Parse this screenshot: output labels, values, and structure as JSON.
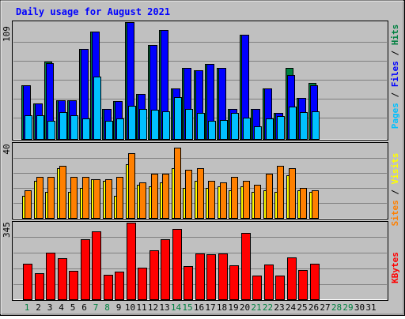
{
  "chart_data": {
    "type": "bar",
    "title": "Daily usage for August 2021",
    "days": [
      "1",
      "2",
      "3",
      "4",
      "5",
      "6",
      "7",
      "8",
      "9",
      "10",
      "11",
      "12",
      "13",
      "14",
      "15",
      "16",
      "17",
      "18",
      "19",
      "20",
      "21",
      "22",
      "23",
      "24",
      "25",
      "26",
      "27",
      "28",
      "29",
      "30",
      "31"
    ],
    "weekend_days": [
      "1",
      "7",
      "8",
      "14",
      "15",
      "21",
      "22",
      "28",
      "29"
    ],
    "panels": [
      {
        "max_label": "109",
        "ylim": [
          0,
          109
        ],
        "series": [
          {
            "name": "Hits",
            "color": "#008040",
            "values": [
              50,
              33,
              72,
              36,
              36,
              84,
              100,
              28,
              35,
              109,
              42,
              88,
              102,
              47,
              66,
              64,
              70,
              66,
              28,
              97,
              28,
              47,
              24,
              66,
              38,
              52,
              0,
              0,
              0,
              0,
              0
            ]
          },
          {
            "name": "Files",
            "color": "#0000ff",
            "values": [
              50,
              33,
              71,
              36,
              36,
              84,
              100,
              28,
              35,
              109,
              42,
              88,
              102,
              47,
              66,
              64,
              70,
              66,
              28,
              97,
              28,
              47,
              24,
              60,
              38,
              50,
              0,
              0,
              0,
              0,
              0
            ]
          },
          {
            "name": "Pages",
            "color": "#00c0ff",
            "values": [
              22,
              22,
              17,
              25,
              22,
              19,
              58,
              17,
              19,
              31,
              28,
              27,
              26,
              39,
              28,
              24,
              17,
              18,
              24,
              20,
              12,
              19,
              21,
              30,
              25,
              26,
              0,
              0,
              0,
              0,
              0
            ]
          }
        ]
      },
      {
        "max_label": "40",
        "ylim": [
          0,
          40
        ],
        "series": [
          {
            "name": "Visits",
            "color": "#ffff00",
            "values": [
              12,
              20,
              14,
              27,
              14,
              16,
              21,
              20,
              12,
              29,
              18,
              17,
              19,
              27,
              16,
              20,
              16,
              17,
              15,
              17,
              14,
              15,
              14,
              23,
              15,
              14,
              0,
              0,
              0,
              0,
              0
            ]
          },
          {
            "name": "Sites",
            "color": "#ff8000",
            "values": [
              15,
              22,
              22,
              28,
              22,
              22,
              21,
              21,
              22,
              35,
              19,
              24,
              24,
              38,
              26,
              27,
              20,
              19,
              22,
              20,
              18,
              24,
              28,
              27,
              16,
              15,
              0,
              0,
              0,
              0,
              0
            ]
          }
        ]
      },
      {
        "max_label": "345",
        "ylim": [
          0,
          345
        ],
        "series": [
          {
            "name": "KBytes",
            "color": "#ff0000",
            "values": [
              161,
              118,
              209,
              184,
              129,
              269,
              307,
              110,
              125,
              345,
              143,
              219,
              269,
              316,
              149,
              205,
              203,
              207,
              154,
              299,
              105,
              157,
              105,
              189,
              133,
              159,
              0,
              0,
              0,
              0,
              0
            ]
          }
        ]
      }
    ],
    "right_labels": [
      {
        "parts": [
          {
            "text": "Pages",
            "color": "#00c0ff"
          },
          {
            "text": " / ",
            "color": "#000000"
          },
          {
            "text": "Files",
            "color": "#0000ff"
          },
          {
            "text": " / ",
            "color": "#000000"
          },
          {
            "text": "Hits",
            "color": "#008040"
          }
        ]
      },
      {
        "parts": [
          {
            "text": "Sites",
            "color": "#ff8000"
          },
          {
            "text": " / ",
            "color": "#000000"
          },
          {
            "text": "Visits",
            "color": "#ffff00"
          }
        ]
      },
      {
        "parts": [
          {
            "text": "KBytes",
            "color": "#ff0000"
          }
        ]
      }
    ],
    "colors": {
      "background": "#c0c0c0",
      "title": "#0000ff",
      "weekday_label": "#000000",
      "weekend_label": "#008040",
      "grid": "#808080"
    }
  }
}
